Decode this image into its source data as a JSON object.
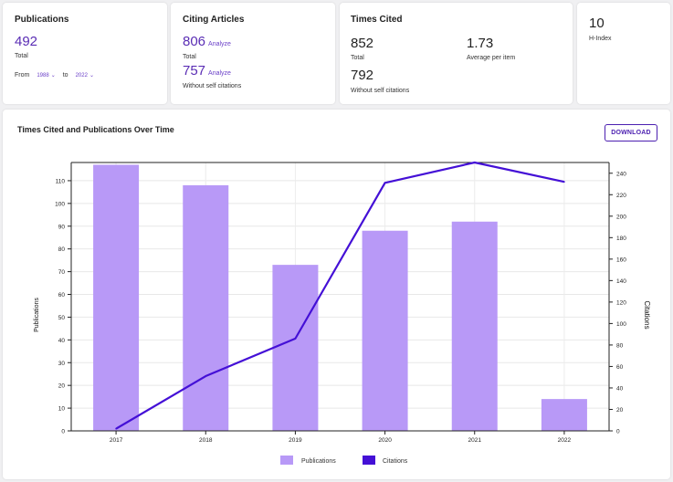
{
  "publications": {
    "title": "Publications",
    "total": "492",
    "total_label": "Total",
    "from_label": "From",
    "from_value": "1988",
    "to_label": "to",
    "to_value": "2022"
  },
  "citing": {
    "title": "Citing Articles",
    "total": "806",
    "total_analyze": "Analyze",
    "total_label": "Total",
    "without_self": "757",
    "without_self_analyze": "Analyze",
    "without_self_label": "Without self citations"
  },
  "times_cited": {
    "title": "Times Cited",
    "total": "852",
    "total_label": "Total",
    "average": "1.73",
    "average_label": "Average per item",
    "without_self": "792",
    "without_self_label": "Without self citations"
  },
  "h_index": {
    "value": "10",
    "label": "H-Index"
  },
  "chart_panel": {
    "title": "Times Cited and Publications Over Time",
    "download_label": "DOWNLOAD"
  },
  "colors": {
    "accent": "#4b1fb0",
    "bar": "#b899f7",
    "line": "#4410d6"
  },
  "chart_data": {
    "type": "bar",
    "categories": [
      "2017",
      "2018",
      "2019",
      "2020",
      "2021",
      "2022"
    ],
    "series": [
      {
        "name": "Publications",
        "type": "bar",
        "axis": "left",
        "values": [
          117,
          108,
          73,
          88,
          92,
          14
        ]
      },
      {
        "name": "Citations",
        "type": "line",
        "axis": "right",
        "values": [
          2,
          51,
          86,
          231,
          250,
          232
        ]
      }
    ],
    "xlabel": "",
    "ylabel": "Publications",
    "ylabel_right": "Citations",
    "ylim": [
      0,
      118
    ],
    "ylim_right": [
      0,
      250
    ],
    "yticks": [
      0,
      10,
      20,
      30,
      40,
      50,
      60,
      70,
      80,
      90,
      100,
      110
    ],
    "yticks_right": [
      0,
      20,
      40,
      60,
      80,
      100,
      120,
      140,
      160,
      180,
      200,
      220,
      240
    ],
    "grid": true,
    "legend": "bottom-center"
  }
}
